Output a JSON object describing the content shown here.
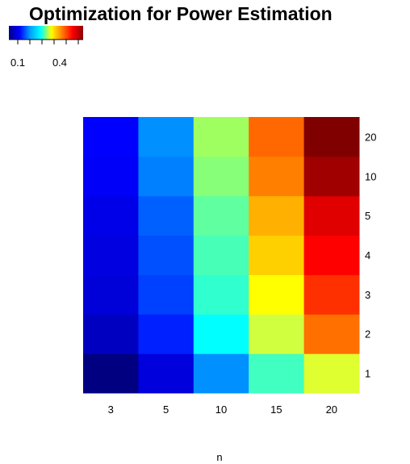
{
  "chart_data": {
    "type": "heatmap",
    "title": "Optimization for Power Estimation",
    "xlabel": "n",
    "ylabel": "",
    "x_categories": [
      "3",
      "5",
      "10",
      "15",
      "20"
    ],
    "y_categories": [
      "1",
      "2",
      "3",
      "4",
      "5",
      "10",
      "20"
    ],
    "colorbar": {
      "tick_labels": [
        "0.1",
        "0.4"
      ],
      "palette": [
        "#00008b",
        "#0000ff",
        "#00a0ff",
        "#00ffff",
        "#ffff00",
        "#ff7f00",
        "#ff0000",
        "#8b0000"
      ]
    },
    "cell_colors": [
      [
        "#000080",
        "#0000dc",
        "#0090ff",
        "#40ffc0",
        "#e0ff30"
      ],
      [
        "#0000c0",
        "#0020ff",
        "#00ffff",
        "#d0ff40",
        "#ff7000"
      ],
      [
        "#0000d8",
        "#0040ff",
        "#30ffd0",
        "#ffff00",
        "#ff3000"
      ],
      [
        "#0000e0",
        "#0050ff",
        "#48ffb8",
        "#ffd000",
        "#ff0000"
      ],
      [
        "#0000e8",
        "#0060ff",
        "#60ffa0",
        "#ffb000",
        "#e00000"
      ],
      [
        "#0000f8",
        "#0080ff",
        "#88ff78",
        "#ff8000",
        "#a00000"
      ],
      [
        "#0000ff",
        "#0090ff",
        "#a0ff60",
        "#ff6800",
        "#800000"
      ]
    ]
  }
}
